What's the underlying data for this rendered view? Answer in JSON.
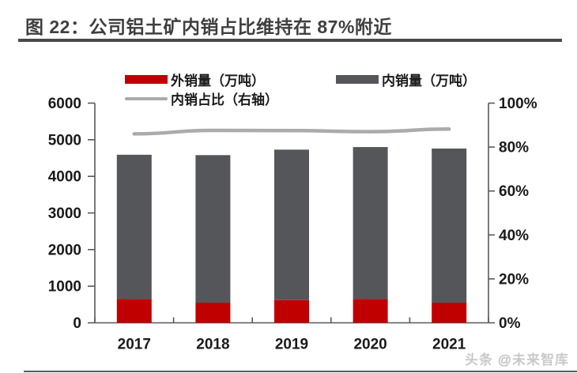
{
  "title": "图 22：公司铝土矿内销占比维持在 87%附近",
  "watermark": "头条 @未来智库",
  "colors": {
    "export_bar": "#c00000",
    "domestic_bar": "#54565a",
    "ratio_line": "#ababab",
    "axis": "#595959",
    "title_text": "#3f3f3f",
    "label_text": "#1a1a1a"
  },
  "legend": [
    {
      "label": "外销量（万吨）",
      "type": "bar",
      "color": "#c00000"
    },
    {
      "label": "内销量（万吨）",
      "type": "bar",
      "color": "#54565a"
    },
    {
      "label": "内销占比（右轴）",
      "type": "line",
      "color": "#ababab"
    }
  ],
  "chart_data": {
    "type": "bar",
    "subtype": "stacked-bars-with-right-axis-line",
    "title": "公司铝土矿内销占比维持在 87%附近",
    "categories": [
      "2017",
      "2018",
      "2019",
      "2020",
      "2021"
    ],
    "series": [
      {
        "name": "外销量（万吨）",
        "type": "bar",
        "stack": true,
        "color": "#c00000",
        "values": [
          650,
          550,
          620,
          650,
          550
        ]
      },
      {
        "name": "内销量（万吨）",
        "type": "bar",
        "stack": true,
        "color": "#54565a",
        "values": [
          3940,
          4030,
          4110,
          4150,
          4210
        ]
      },
      {
        "name": "内销占比（右轴）",
        "type": "line",
        "axis": "right",
        "color": "#ababab",
        "values": [
          86.0,
          87.6,
          87.5,
          87.0,
          88.2
        ]
      }
    ],
    "left_axis": {
      "min": 0,
      "max": 6000,
      "step": 1000,
      "tick_labels": [
        "0",
        "1000",
        "2000",
        "3000",
        "4000",
        "5000",
        "6000"
      ]
    },
    "right_axis": {
      "min": 0,
      "max": 100,
      "step": 20,
      "tick_labels": [
        "0%",
        "20%",
        "40%",
        "60%",
        "80%",
        "100%"
      ]
    },
    "grid": false,
    "legend_position": "top"
  }
}
